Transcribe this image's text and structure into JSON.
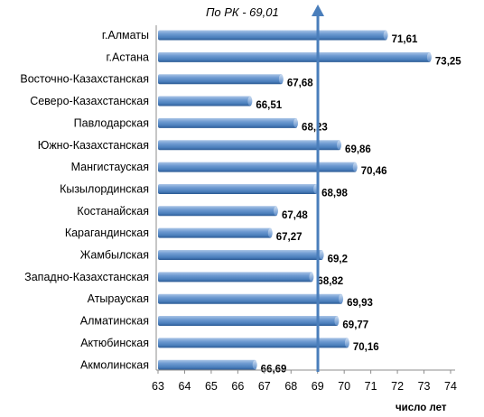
{
  "chart_data": {
    "type": "bar",
    "orientation": "horizontal",
    "categories": [
      "г.Алматы",
      "г.Астана",
      "Восточно-Казахстанская",
      "Северо-Казахстанская",
      "Павлодарская",
      "Южно-Казахстанская",
      "Мангистауская",
      "Кызылординская",
      "Костанайская",
      "Карагандинская",
      "Жамбылская",
      "Западно-Казахстанская",
      "Атырауская",
      "Алматинская",
      "Актюбинская",
      "Акмолинская"
    ],
    "values": [
      71.61,
      73.25,
      67.68,
      66.51,
      68.23,
      69.86,
      70.46,
      68.98,
      67.48,
      67.27,
      69.2,
      68.82,
      69.93,
      69.77,
      70.16,
      66.69
    ],
    "value_labels": [
      "71,61",
      "73,25",
      "67,68",
      "66,51",
      "68,23",
      "69,86",
      "70,46",
      "68,98",
      "67,48",
      "67,27",
      "69,2",
      "68,82",
      "69,93",
      "69,77",
      "70,16",
      "66,69"
    ],
    "xlim": [
      63,
      74
    ],
    "xticks": [
      "63",
      "64",
      "65",
      "66",
      "67",
      "68",
      "69",
      "70",
      "71",
      "72",
      "73",
      "74"
    ],
    "xlabel": "число лет",
    "reference_line": {
      "value": 69.01,
      "label": "По РК - 69,01"
    },
    "grid": false,
    "legend": "none",
    "colors": {
      "bar": "#4a7ebb",
      "bar_dark": "#2b5a94",
      "bar_light": "#a9c4e6",
      "reference": "#4a7ebb"
    }
  }
}
